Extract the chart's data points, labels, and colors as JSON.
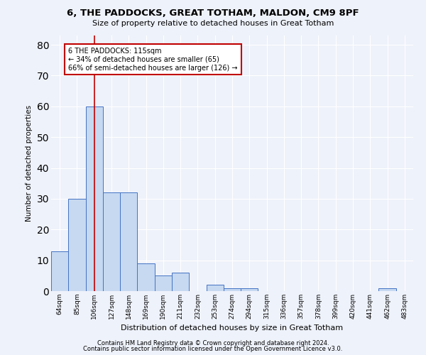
{
  "title1": "6, THE PADDOCKS, GREAT TOTHAM, MALDON, CM9 8PF",
  "title2": "Size of property relative to detached houses in Great Totham",
  "xlabel": "Distribution of detached houses by size in Great Totham",
  "ylabel": "Number of detached properties",
  "categories": [
    "64sqm",
    "85sqm",
    "106sqm",
    "127sqm",
    "148sqm",
    "169sqm",
    "190sqm",
    "211sqm",
    "232sqm",
    "253sqm",
    "274sqm",
    "294sqm",
    "315sqm",
    "336sqm",
    "357sqm",
    "378sqm",
    "399sqm",
    "420sqm",
    "441sqm",
    "462sqm",
    "483sqm"
  ],
  "values": [
    13,
    30,
    60,
    32,
    32,
    9,
    5,
    6,
    0,
    2,
    1,
    1,
    0,
    0,
    0,
    0,
    0,
    0,
    0,
    1,
    0
  ],
  "bar_color": "#c6d9f1",
  "bar_edge_color": "#4472c4",
  "ylim": [
    0,
    83
  ],
  "yticks": [
    0,
    10,
    20,
    30,
    40,
    50,
    60,
    70,
    80
  ],
  "vline_x": 2,
  "vline_color": "#c00000",
  "annotation_text": "6 THE PADDOCKS: 115sqm\n← 34% of detached houses are smaller (65)\n66% of semi-detached houses are larger (126) →",
  "annotation_box_color": "#ffffff",
  "annotation_box_edge": "#c00000",
  "footer1": "Contains HM Land Registry data © Crown copyright and database right 2024.",
  "footer2": "Contains public sector information licensed under the Open Government Licence v3.0.",
  "background_color": "#eef2fa",
  "grid_color": "#ffffff"
}
